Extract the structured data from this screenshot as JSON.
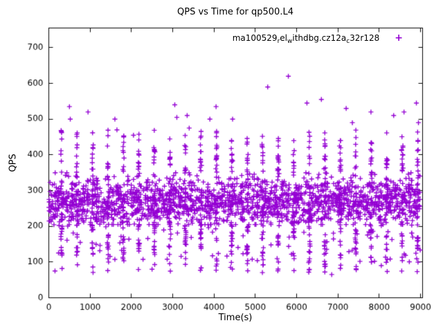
{
  "title": "QPS vs Time for qp500.L4",
  "axes": {
    "xlabel": "Time(s)",
    "ylabel": "QPS",
    "xmin": 0,
    "xmax": 9050,
    "ymin": 0,
    "ymax": 755,
    "xticks": [
      0,
      1000,
      2000,
      3000,
      4000,
      5000,
      6000,
      7000,
      8000,
      9000
    ],
    "yticks": [
      0,
      100,
      200,
      300,
      400,
      500,
      600,
      700
    ],
    "grid": false
  },
  "legend": {
    "marker_symbol": "+",
    "segments": [
      {
        "t": "ma100529",
        "sub": false
      },
      {
        "t": "r",
        "sub": true
      },
      {
        "t": "el",
        "sub": false
      },
      {
        "t": "w",
        "sub": true
      },
      {
        "t": "ithdbg.cz12a",
        "sub": false
      },
      {
        "t": "c",
        "sub": true
      },
      {
        "t": "32r128",
        "sub": false
      }
    ]
  },
  "chart_data": {
    "type": "scatter",
    "title": "QPS vs Time for qp500.L4",
    "xlabel": "Time(s)",
    "ylabel": "QPS",
    "xlim": [
      0,
      9050
    ],
    "ylim": [
      0,
      755
    ],
    "legend_position": "top-right-inside",
    "marker": "plus",
    "color": "#9400D3",
    "series_name": "ma100529_rel_withdbg.cz12a_c32r128",
    "summary": "QPS over ~9000s; dense band ~230-330 QPS, periodic vertical bursts every ~375s spanning ~70-470 QPS, occasional spikes 490-620 QPS",
    "scatter_spec": {
      "seed": 1337,
      "t_max": 9000,
      "clusters": 24,
      "period": 375,
      "stripe_pos": 0.82,
      "base_per_cluster": 72,
      "band_mean": 272,
      "band_sd": 32,
      "band_min": 205,
      "band_max": 350,
      "tail_per_cluster": 16,
      "tail_low": 120,
      "tail_high": 430,
      "deep_per_cluster": 8,
      "deep_low": 70,
      "deep_high": 215,
      "spike_per_cluster": 6,
      "spike_low": 350,
      "spike_high": 470,
      "sparse_low": 110
    },
    "outliers": [
      [
        500,
        535
      ],
      [
        520,
        500
      ],
      [
        950,
        520
      ],
      [
        1600,
        500
      ],
      [
        1650,
        470
      ],
      [
        2050,
        455
      ],
      [
        3050,
        540
      ],
      [
        3100,
        505
      ],
      [
        3350,
        510
      ],
      [
        3400,
        475
      ],
      [
        3900,
        500
      ],
      [
        4050,
        535
      ],
      [
        4450,
        500
      ],
      [
        5300,
        590
      ],
      [
        5800,
        620
      ],
      [
        6250,
        545
      ],
      [
        6600,
        555
      ],
      [
        7200,
        530
      ],
      [
        7350,
        490
      ],
      [
        7800,
        520
      ],
      [
        8350,
        510
      ],
      [
        8600,
        520
      ],
      [
        8900,
        545
      ],
      [
        8950,
        490
      ],
      [
        150,
        75
      ],
      [
        2500,
        80
      ],
      [
        4400,
        85
      ],
      [
        6850,
        65
      ],
      [
        8050,
        90
      ]
    ]
  }
}
